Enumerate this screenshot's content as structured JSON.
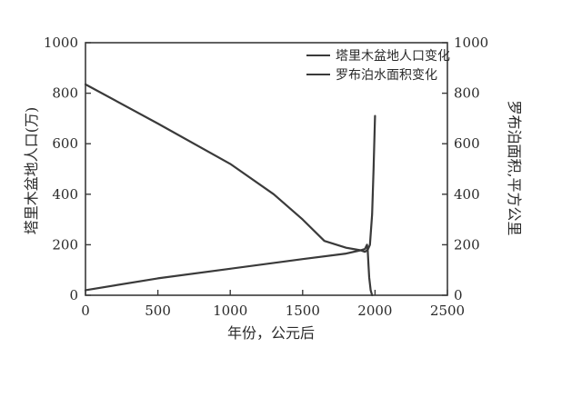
{
  "chart_data": {
    "type": "line",
    "xlabel": "年份，公元后",
    "ylabel_left": "塔里木盆地人口(万)",
    "ylabel_right": "罗布泊面积,平方公里",
    "xlim": [
      0,
      2500
    ],
    "ylim_left": [
      0,
      1000
    ],
    "ylim_right": [
      0,
      1000
    ],
    "x_ticks": [
      0,
      500,
      1000,
      1500,
      2000,
      2500
    ],
    "y_ticks_left": [
      0,
      200,
      400,
      600,
      800,
      1000
    ],
    "y_ticks_right": [
      0,
      200,
      400,
      600,
      800,
      1000
    ],
    "legend_position": "top-right",
    "grid": false,
    "series": [
      {
        "name": "塔里木盆地人口变化",
        "axis": "left",
        "color": "#3a3a3a",
        "points": [
          [
            0,
            20
          ],
          [
            500,
            67
          ],
          [
            1000,
            105
          ],
          [
            1500,
            143
          ],
          [
            1800,
            165
          ],
          [
            1900,
            178
          ],
          [
            1930,
            183
          ],
          [
            1945,
            200
          ],
          [
            1950,
            175
          ],
          [
            1955,
            120
          ],
          [
            1960,
            70
          ],
          [
            1970,
            20
          ],
          [
            1980,
            0
          ]
        ]
      },
      {
        "name": "罗布泊水面积变化",
        "axis": "right",
        "color": "#3a3a3a",
        "points": [
          [
            0,
            835
          ],
          [
            500,
            680
          ],
          [
            1000,
            520
          ],
          [
            1300,
            400
          ],
          [
            1500,
            300
          ],
          [
            1650,
            215
          ],
          [
            1800,
            188
          ],
          [
            1900,
            178
          ],
          [
            1930,
            172
          ],
          [
            1950,
            180
          ],
          [
            1965,
            200
          ],
          [
            1980,
            320
          ],
          [
            1990,
            500
          ],
          [
            2000,
            710
          ]
        ]
      }
    ]
  }
}
